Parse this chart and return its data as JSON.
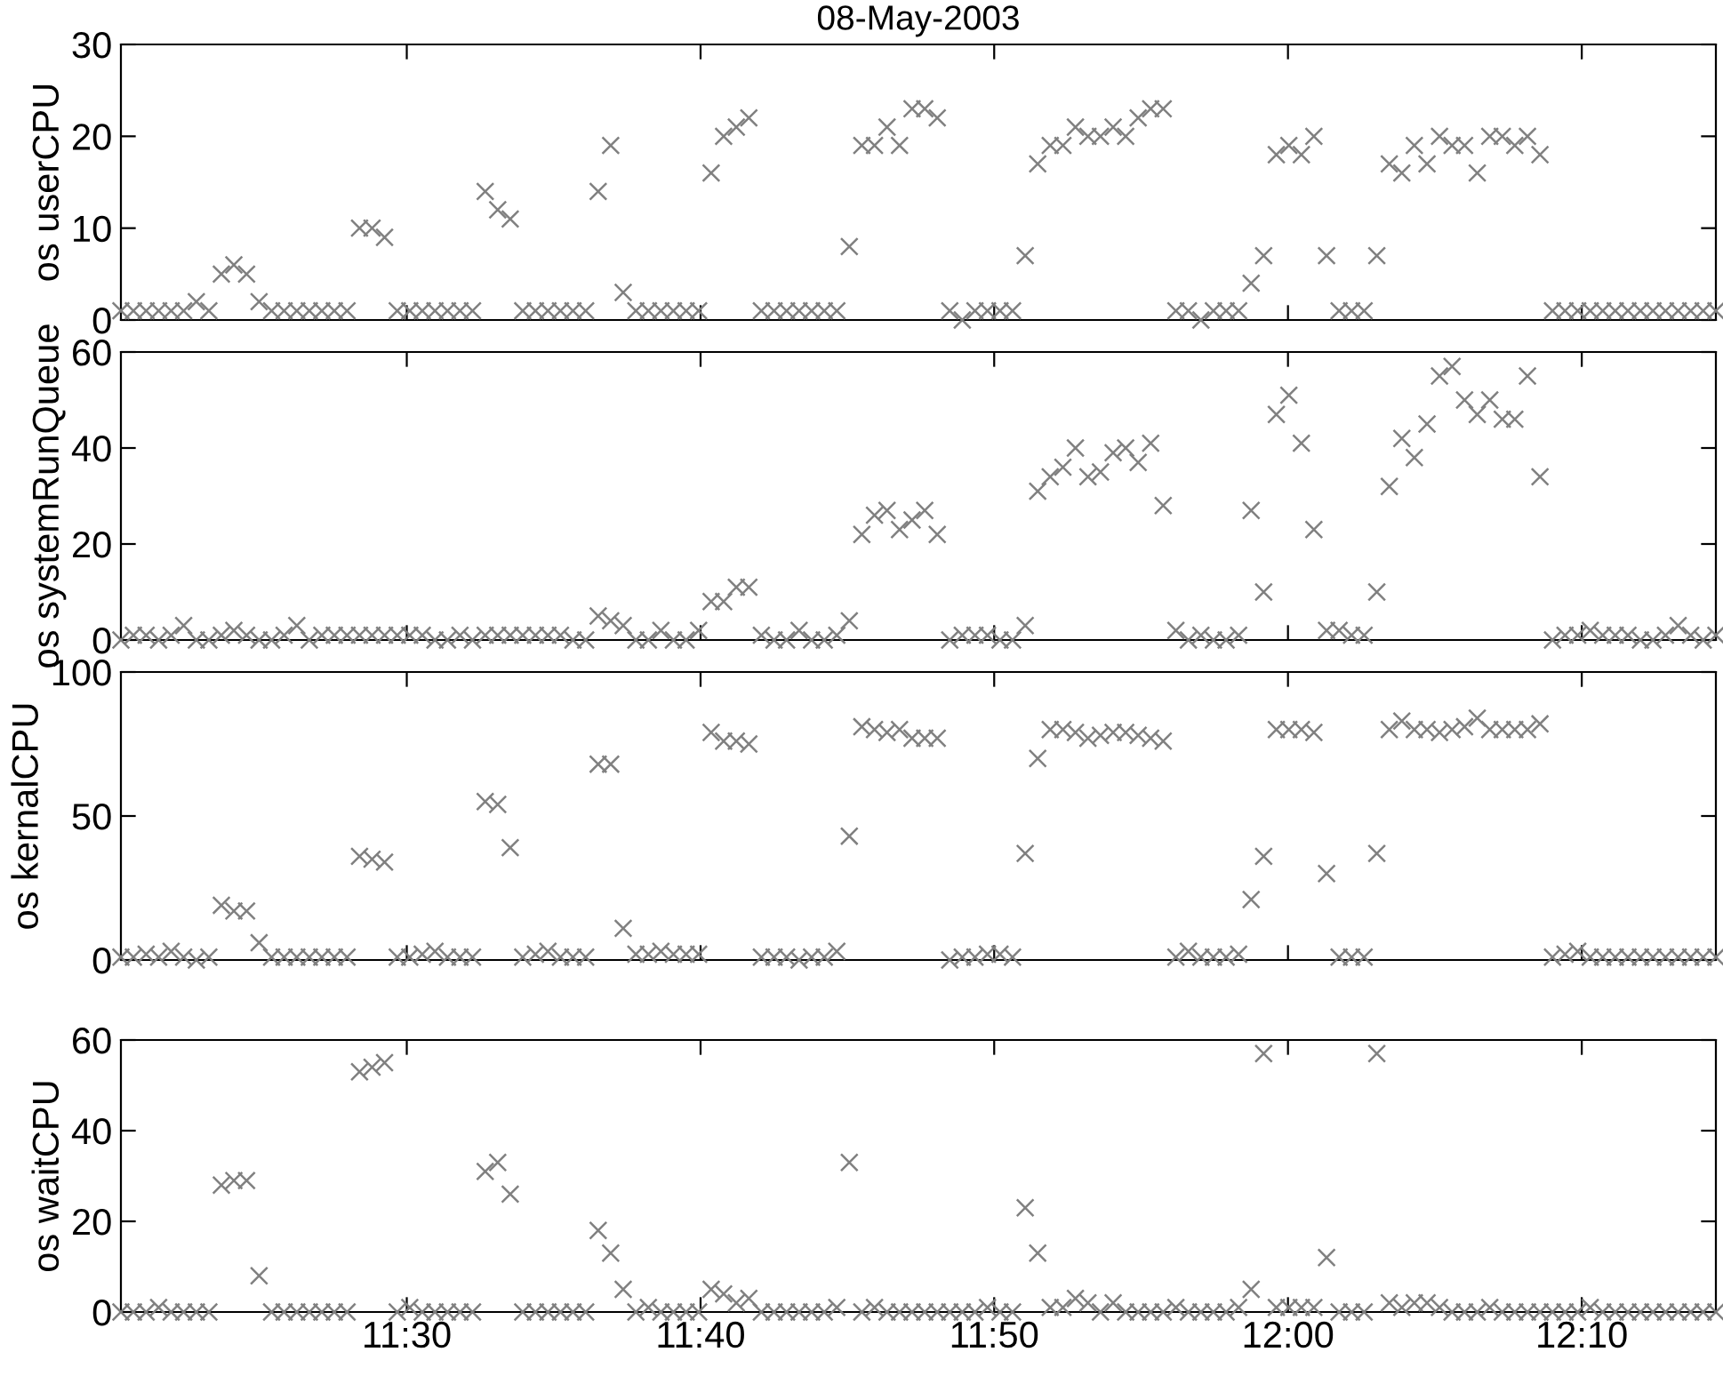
{
  "chart_data": [
    {
      "type": "scatter",
      "title": "08-May-2003",
      "ylabel": "os userCPU",
      "marker": "cross",
      "grid": false,
      "tick_labels": "y",
      "x": [
        11.3378,
        11.3449,
        11.3521,
        11.3592,
        11.3663,
        11.3734,
        11.3806,
        11.3877,
        11.3948,
        11.4019,
        11.4091,
        11.4162,
        11.4233,
        11.4304,
        11.4376,
        11.4447,
        11.4518,
        11.4589,
        11.4661,
        11.4732,
        11.4803,
        11.4874,
        11.4946,
        11.5017,
        11.5088,
        11.516,
        11.5231,
        11.5302,
        11.5373,
        11.5445,
        11.5516,
        11.5587,
        11.5658,
        11.573,
        11.5801,
        11.5872,
        11.5943,
        11.6015,
        11.6086,
        11.6157,
        11.6228,
        11.63,
        11.6371,
        11.6442,
        11.6513,
        11.6585,
        11.6656,
        11.6727,
        11.6798,
        11.687,
        11.6941,
        11.7012,
        11.7084,
        11.7155,
        11.7226,
        11.7297,
        11.7369,
        11.744,
        11.7511,
        11.7582,
        11.7654,
        11.7725,
        11.7796,
        11.7867,
        11.7939,
        11.801,
        11.8081,
        11.8152,
        11.8224,
        11.8295,
        11.8366,
        11.8437,
        11.8509,
        11.858,
        11.8651,
        11.8723,
        11.8794,
        11.8865,
        11.8936,
        11.9008,
        11.9079,
        11.915,
        11.9221,
        11.9292,
        11.9364,
        11.9435,
        11.9506,
        11.9577,
        11.9649,
        11.972,
        11.9791,
        11.9862,
        11.9934,
        12.0005,
        12.0076,
        12.0147,
        12.0219,
        12.029,
        12.0361,
        12.0432,
        12.0504,
        12.0575,
        12.0646,
        12.0717,
        12.0789,
        12.086,
        12.0931,
        12.1002,
        12.1074,
        12.1145,
        12.1216,
        12.1287,
        12.1359,
        12.143,
        12.1501,
        12.1572,
        12.1644,
        12.1715,
        12.1786,
        12.1857,
        12.1929,
        12.2,
        12.2071,
        12.2142,
        12.2214,
        12.2285,
        12.2356,
        12.2428
      ],
      "xlim": [
        11.3378,
        12.2428
      ],
      "xticks": [
        {
          "value": 11.5,
          "label": null
        },
        {
          "value": 11.6667,
          "label": null
        },
        {
          "value": 11.8333,
          "label": null
        },
        {
          "value": 12.0,
          "label": null
        },
        {
          "value": 12.1667,
          "label": null
        }
      ],
      "ylim": [
        0,
        30
      ],
      "yticks": [
        0,
        10,
        20,
        30
      ],
      "series": [
        {
          "color": "#808080",
          "values": [
            1,
            1,
            1,
            1,
            1,
            1,
            2,
            1,
            5,
            6,
            5,
            2,
            1,
            1,
            1,
            1,
            1,
            1,
            1,
            10,
            10,
            9,
            1,
            1,
            1,
            1,
            1,
            1,
            1,
            14,
            12,
            11,
            1,
            1,
            1,
            1,
            1,
            1,
            14,
            19,
            3,
            1,
            1,
            1,
            1,
            1,
            1,
            16,
            20,
            21,
            22,
            1,
            1,
            1,
            1,
            1,
            1,
            1,
            8,
            19,
            19,
            21,
            19,
            23,
            23,
            22,
            1,
            0,
            1,
            1,
            1,
            1,
            7,
            17,
            19,
            19,
            21,
            20,
            20,
            21,
            20,
            22,
            23,
            23,
            1,
            1,
            0,
            1,
            1,
            1,
            4,
            7,
            18,
            19,
            18,
            20,
            7,
            1,
            1,
            1,
            7,
            17,
            16,
            19,
            17,
            20,
            19,
            19,
            16,
            20,
            20,
            19,
            20,
            18,
            1,
            1,
            1,
            1,
            1,
            1,
            1,
            1,
            1,
            1,
            1,
            1,
            1,
            1
          ]
        }
      ]
    },
    {
      "type": "scatter",
      "ylabel": "os systemRunQueue",
      "marker": "cross",
      "grid": false,
      "tick_labels": "y",
      "x": [
        11.3378,
        11.3449,
        11.3521,
        11.3592,
        11.3663,
        11.3734,
        11.3806,
        11.3877,
        11.3948,
        11.4019,
        11.4091,
        11.4162,
        11.4233,
        11.4304,
        11.4376,
        11.4447,
        11.4518,
        11.4589,
        11.4661,
        11.4732,
        11.4803,
        11.4874,
        11.4946,
        11.5017,
        11.5088,
        11.516,
        11.5231,
        11.5302,
        11.5373,
        11.5445,
        11.5516,
        11.5587,
        11.5658,
        11.573,
        11.5801,
        11.5872,
        11.5943,
        11.6015,
        11.6086,
        11.6157,
        11.6228,
        11.63,
        11.6371,
        11.6442,
        11.6513,
        11.6585,
        11.6656,
        11.6727,
        11.6798,
        11.687,
        11.6941,
        11.7012,
        11.7084,
        11.7155,
        11.7226,
        11.7297,
        11.7369,
        11.744,
        11.7511,
        11.7582,
        11.7654,
        11.7725,
        11.7796,
        11.7867,
        11.7939,
        11.801,
        11.8081,
        11.8152,
        11.8224,
        11.8295,
        11.8366,
        11.8437,
        11.8509,
        11.858,
        11.8651,
        11.8723,
        11.8794,
        11.8865,
        11.8936,
        11.9008,
        11.9079,
        11.915,
        11.9221,
        11.9292,
        11.9364,
        11.9435,
        11.9506,
        11.9577,
        11.9649,
        11.972,
        11.9791,
        11.9862,
        11.9934,
        12.0005,
        12.0076,
        12.0147,
        12.0219,
        12.029,
        12.0361,
        12.0432,
        12.0504,
        12.0575,
        12.0646,
        12.0717,
        12.0789,
        12.086,
        12.0931,
        12.1002,
        12.1074,
        12.1145,
        12.1216,
        12.1287,
        12.1359,
        12.143,
        12.1501,
        12.1572,
        12.1644,
        12.1715,
        12.1786,
        12.1857,
        12.1929,
        12.2,
        12.2071,
        12.2142,
        12.2214,
        12.2285,
        12.2356,
        12.2428
      ],
      "xlim": [
        11.3378,
        12.2428
      ],
      "xticks": [
        {
          "value": 11.5,
          "label": null
        },
        {
          "value": 11.6667,
          "label": null
        },
        {
          "value": 11.8333,
          "label": null
        },
        {
          "value": 12.0,
          "label": null
        },
        {
          "value": 12.1667,
          "label": null
        }
      ],
      "ylim": [
        0,
        60
      ],
      "yticks": [
        0,
        20,
        40,
        60
      ],
      "series": [
        {
          "color": "#808080",
          "values": [
            0,
            1,
            1,
            0,
            1,
            3,
            0,
            0,
            1,
            2,
            1,
            0,
            0,
            1,
            3,
            0,
            1,
            1,
            1,
            1,
            1,
            1,
            1,
            1,
            1,
            0,
            0,
            1,
            0,
            1,
            1,
            1,
            1,
            1,
            1,
            1,
            0,
            0,
            5,
            4,
            3,
            0,
            0,
            2,
            0,
            0,
            2,
            8,
            8,
            11,
            11,
            1,
            0,
            0,
            2,
            0,
            0,
            1,
            4,
            22,
            26,
            27,
            23,
            25,
            27,
            22,
            0,
            1,
            1,
            1,
            0,
            0,
            3,
            31,
            34,
            36,
            40,
            34,
            35,
            39,
            40,
            37,
            41,
            28,
            2,
            0,
            1,
            0,
            0,
            1,
            27,
            10,
            47,
            51,
            41,
            23,
            2,
            2,
            1,
            1,
            10,
            32,
            42,
            38,
            45,
            55,
            57,
            50,
            47,
            50,
            46,
            46,
            55,
            34,
            0,
            1,
            1,
            2,
            1,
            1,
            1,
            0,
            0,
            1,
            3,
            1,
            0,
            1
          ]
        }
      ]
    },
    {
      "type": "scatter",
      "ylabel": "os kernalCPU",
      "marker": "cross",
      "grid": false,
      "tick_labels": "y",
      "x": [
        11.3378,
        11.3449,
        11.3521,
        11.3592,
        11.3663,
        11.3734,
        11.3806,
        11.3877,
        11.3948,
        11.4019,
        11.4091,
        11.4162,
        11.4233,
        11.4304,
        11.4376,
        11.4447,
        11.4518,
        11.4589,
        11.4661,
        11.4732,
        11.4803,
        11.4874,
        11.4946,
        11.5017,
        11.5088,
        11.516,
        11.5231,
        11.5302,
        11.5373,
        11.5445,
        11.5516,
        11.5587,
        11.5658,
        11.573,
        11.5801,
        11.5872,
        11.5943,
        11.6015,
        11.6086,
        11.6157,
        11.6228,
        11.63,
        11.6371,
        11.6442,
        11.6513,
        11.6585,
        11.6656,
        11.6727,
        11.6798,
        11.687,
        11.6941,
        11.7012,
        11.7084,
        11.7155,
        11.7226,
        11.7297,
        11.7369,
        11.744,
        11.7511,
        11.7582,
        11.7654,
        11.7725,
        11.7796,
        11.7867,
        11.7939,
        11.801,
        11.8081,
        11.8152,
        11.8224,
        11.8295,
        11.8366,
        11.8437,
        11.8509,
        11.858,
        11.8651,
        11.8723,
        11.8794,
        11.8865,
        11.8936,
        11.9008,
        11.9079,
        11.915,
        11.9221,
        11.9292,
        11.9364,
        11.9435,
        11.9506,
        11.9577,
        11.9649,
        11.972,
        11.9791,
        11.9862,
        11.9934,
        12.0005,
        12.0076,
        12.0147,
        12.0219,
        12.029,
        12.0361,
        12.0432,
        12.0504,
        12.0575,
        12.0646,
        12.0717,
        12.0789,
        12.086,
        12.0931,
        12.1002,
        12.1074,
        12.1145,
        12.1216,
        12.1287,
        12.1359,
        12.143,
        12.1501,
        12.1572,
        12.1644,
        12.1715,
        12.1786,
        12.1857,
        12.1929,
        12.2,
        12.2071,
        12.2142,
        12.2214,
        12.2285,
        12.2356,
        12.2428
      ],
      "xlim": [
        11.3378,
        12.2428
      ],
      "xticks": [
        {
          "value": 11.5,
          "label": null
        },
        {
          "value": 11.6667,
          "label": null
        },
        {
          "value": 11.8333,
          "label": null
        },
        {
          "value": 12.0,
          "label": null
        },
        {
          "value": 12.1667,
          "label": null
        }
      ],
      "ylim": [
        0,
        100
      ],
      "yticks": [
        0,
        50,
        100
      ],
      "series": [
        {
          "color": "#808080",
          "values": [
            1,
            1,
            2,
            1,
            3,
            1,
            0,
            1,
            19,
            17,
            17,
            6,
            1,
            1,
            1,
            1,
            1,
            1,
            1,
            36,
            35,
            34,
            1,
            1,
            2,
            3,
            1,
            1,
            1,
            55,
            54,
            39,
            1,
            2,
            3,
            1,
            1,
            1,
            68,
            68,
            11,
            2,
            2,
            3,
            2,
            2,
            2,
            79,
            76,
            76,
            75,
            1,
            1,
            1,
            0,
            1,
            1,
            3,
            43,
            81,
            80,
            79,
            80,
            77,
            77,
            77,
            0,
            1,
            1,
            2,
            2,
            1,
            37,
            70,
            80,
            80,
            79,
            77,
            78,
            79,
            79,
            78,
            77,
            76,
            1,
            3,
            1,
            1,
            1,
            2,
            21,
            36,
            80,
            80,
            80,
            79,
            30,
            1,
            1,
            1,
            37,
            80,
            83,
            80,
            80,
            79,
            80,
            81,
            84,
            80,
            80,
            80,
            80,
            82,
            1,
            2,
            3,
            1,
            1,
            1,
            1,
            1,
            1,
            1,
            1,
            1,
            1,
            1
          ]
        }
      ]
    },
    {
      "type": "scatter",
      "ylabel": "os waitCPU",
      "marker": "cross",
      "grid": false,
      "x": [
        11.3378,
        11.3449,
        11.3521,
        11.3592,
        11.3663,
        11.3734,
        11.3806,
        11.3877,
        11.3948,
        11.4019,
        11.4091,
        11.4162,
        11.4233,
        11.4304,
        11.4376,
        11.4447,
        11.4518,
        11.4589,
        11.4661,
        11.4732,
        11.4803,
        11.4874,
        11.4946,
        11.5017,
        11.5088,
        11.516,
        11.5231,
        11.5302,
        11.5373,
        11.5445,
        11.5516,
        11.5587,
        11.5658,
        11.573,
        11.5801,
        11.5872,
        11.5943,
        11.6015,
        11.6086,
        11.6157,
        11.6228,
        11.63,
        11.6371,
        11.6442,
        11.6513,
        11.6585,
        11.6656,
        11.6727,
        11.6798,
        11.687,
        11.6941,
        11.7012,
        11.7084,
        11.7155,
        11.7226,
        11.7297,
        11.7369,
        11.744,
        11.7511,
        11.7582,
        11.7654,
        11.7725,
        11.7796,
        11.7867,
        11.7939,
        11.801,
        11.8081,
        11.8152,
        11.8224,
        11.8295,
        11.8366,
        11.8437,
        11.8509,
        11.858,
        11.8651,
        11.8723,
        11.8794,
        11.8865,
        11.8936,
        11.9008,
        11.9079,
        11.915,
        11.9221,
        11.9292,
        11.9364,
        11.9435,
        11.9506,
        11.9577,
        11.9649,
        11.972,
        11.9791,
        11.9862,
        11.9934,
        12.0005,
        12.0076,
        12.0147,
        12.0219,
        12.029,
        12.0361,
        12.0432,
        12.0504,
        12.0575,
        12.0646,
        12.0717,
        12.0789,
        12.086,
        12.0931,
        12.1002,
        12.1074,
        12.1145,
        12.1216,
        12.1287,
        12.1359,
        12.143,
        12.1501,
        12.1572,
        12.1644,
        12.1715,
        12.1786,
        12.1857,
        12.1929,
        12.2,
        12.2071,
        12.2142,
        12.2214,
        12.2285,
        12.2356,
        12.2428
      ],
      "xlim": [
        11.3378,
        12.2428
      ],
      "xticks": [
        {
          "value": 11.5,
          "label": "11:30"
        },
        {
          "value": 11.6667,
          "label": "11:40"
        },
        {
          "value": 11.8333,
          "label": "11:50"
        },
        {
          "value": 12.0,
          "label": "12:00"
        },
        {
          "value": 12.1667,
          "label": "12:10"
        }
      ],
      "ylim": [
        0,
        60
      ],
      "yticks": [
        0,
        20,
        40,
        60
      ],
      "series": [
        {
          "color": "#808080",
          "values": [
            0,
            0,
            0,
            1,
            0,
            0,
            0,
            0,
            28,
            29,
            29,
            8,
            0,
            0,
            0,
            0,
            0,
            0,
            0,
            53,
            54,
            55,
            0,
            1,
            0,
            0,
            0,
            0,
            0,
            31,
            33,
            26,
            0,
            0,
            0,
            0,
            0,
            0,
            18,
            13,
            5,
            0,
            1,
            0,
            0,
            0,
            0,
            5,
            4,
            2,
            3,
            0,
            0,
            0,
            0,
            0,
            0,
            1,
            33,
            0,
            1,
            0,
            0,
            0,
            0,
            0,
            0,
            0,
            0,
            1,
            0,
            0,
            23,
            13,
            1,
            1,
            3,
            2,
            0,
            2,
            0,
            0,
            0,
            0,
            1,
            0,
            0,
            0,
            0,
            1,
            5,
            57,
            1,
            1,
            1,
            1,
            12,
            0,
            0,
            0,
            57,
            2,
            1,
            2,
            2,
            1,
            0,
            0,
            0,
            1,
            0,
            0,
            0,
            0,
            0,
            0,
            0,
            1,
            0,
            0,
            0,
            0,
            0,
            0,
            0,
            0,
            0,
            0
          ]
        }
      ]
    }
  ]
}
